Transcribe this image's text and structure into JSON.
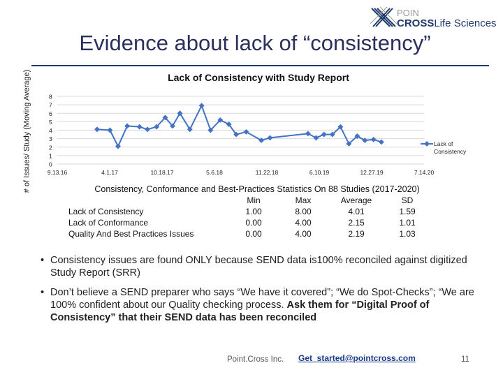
{
  "logo": {
    "line1": "POIN",
    "line2_a": "CROSS",
    "line2_b": "Life Sciences"
  },
  "slide_title": "Evidence about lack of “consistency”",
  "colors": {
    "series": "#4472c4",
    "title": "#2b2f5c",
    "rule": "#1f3b6e",
    "grid": "#d9d9d9"
  },
  "chart_data": {
    "type": "line",
    "title": "Lack of Consistency with Study Report",
    "ylabel": "# of Issues/ Study (Moving Average)",
    "xlabel": "",
    "ylim": [
      0,
      8
    ],
    "yticks": [
      0,
      1,
      2,
      3,
      4,
      5,
      6,
      7,
      8
    ],
    "x_tick_labels": [
      "9.13.16",
      "4.1.17",
      "10.18.17",
      "5.6.18",
      "11.22.18",
      "6.10.19",
      "12.27.19",
      "7.14.20"
    ],
    "x_range": [
      "2016-09-13",
      "2020-07-14"
    ],
    "grid": true,
    "legend_position": "right",
    "series": [
      {
        "name": "Lack of Consistency",
        "points": [
          [
            "2017-02-12",
            4.1
          ],
          [
            "2017-04-02",
            4.0
          ],
          [
            "2017-05-03",
            2.1
          ],
          [
            "2017-06-07",
            4.5
          ],
          [
            "2017-07-24",
            4.4
          ],
          [
            "2017-08-23",
            4.1
          ],
          [
            "2017-09-27",
            4.4
          ],
          [
            "2017-10-30",
            5.5
          ],
          [
            "2017-11-27",
            4.5
          ],
          [
            "2017-12-25",
            6.0
          ],
          [
            "2018-02-01",
            4.1
          ],
          [
            "2018-03-18",
            6.9
          ],
          [
            "2018-04-21",
            4.0
          ],
          [
            "2018-05-28",
            5.2
          ],
          [
            "2018-06-30",
            4.7
          ],
          [
            "2018-07-28",
            3.5
          ],
          [
            "2018-09-04",
            3.8
          ],
          [
            "2018-11-01",
            2.8
          ],
          [
            "2018-12-04",
            3.1
          ],
          [
            "2019-04-28",
            3.6
          ],
          [
            "2019-05-29",
            3.1
          ],
          [
            "2019-06-28",
            3.5
          ],
          [
            "2019-07-30",
            3.5
          ],
          [
            "2019-08-30",
            4.4
          ],
          [
            "2019-10-01",
            2.4
          ],
          [
            "2019-11-02",
            3.3
          ],
          [
            "2019-12-01",
            2.8
          ],
          [
            "2020-01-03",
            2.9
          ],
          [
            "2020-02-02",
            2.6
          ]
        ]
      }
    ],
    "legend_label": "Lack of Consistency"
  },
  "stats": {
    "title": "Consistency, Conformance and Best-Practices Statistics On 88 Studies (2017-2020)",
    "columns": [
      "",
      "Min",
      "Max",
      "Average",
      "SD"
    ],
    "rows": [
      [
        "Lack of Consistency",
        "1.00",
        "8.00",
        "4.01",
        "1.59"
      ],
      [
        "Lack of Conformance",
        "0.00",
        "4.00",
        "2.15",
        "1.01"
      ],
      [
        "Quality And Best Practices Issues",
        "0.00",
        "4.00",
        "2.19",
        "1.03"
      ]
    ]
  },
  "bullets": {
    "b1": "Consistency issues are found ONLY because SEND data is100% reconciled against digitized Study Report (SRR)",
    "b2_plain": "Don’t believe a SEND preparer who says “We have it covered”; “We do Spot-Checks”; “We are 100% confident about our Quality checking process. ",
    "b2_bold": "Ask them for “Digital Proof of Consistency” that their SEND data has been reconciled",
    "marker": "•"
  },
  "footer": {
    "company": "Point.Cross Inc.",
    "email": "Get_started@pointcross.com",
    "page": "11"
  }
}
